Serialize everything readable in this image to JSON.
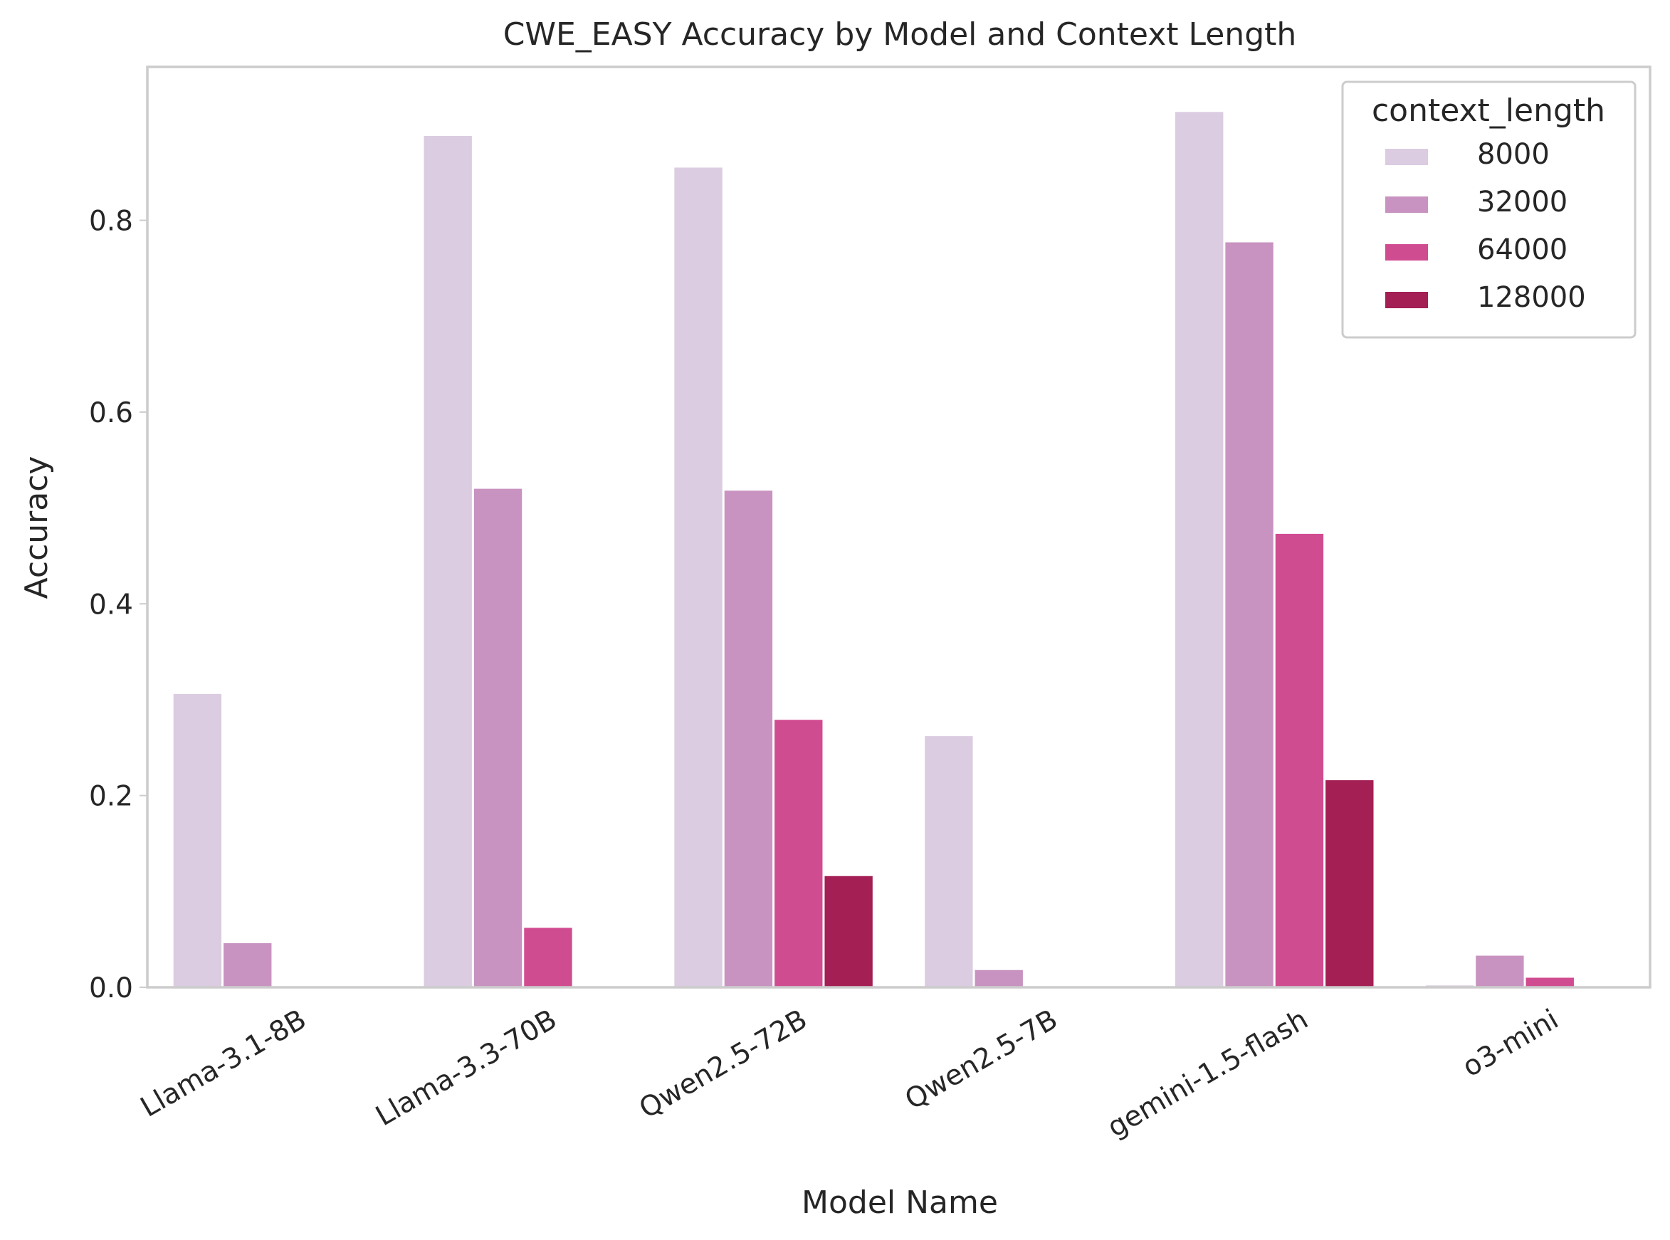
{
  "chart_data": {
    "type": "bar",
    "title": "CWE_EASY Accuracy by Model and Context Length",
    "xlabel": "Model Name",
    "ylabel": "Accuracy",
    "ylim": [
      0,
      0.96
    ],
    "yticks": [
      0.0,
      0.2,
      0.4,
      0.6,
      0.8
    ],
    "ytick_labels": [
      "0.0",
      "0.2",
      "0.4",
      "0.6",
      "0.8"
    ],
    "grid": false,
    "categories": [
      "Llama-3.1-8B",
      "Llama-3.3-70B",
      "Qwen2.5-72B",
      "Qwen2.5-7B",
      "gemini-1.5-flash",
      "o3-mini"
    ],
    "legend": {
      "title": "context_length",
      "position": "top-right"
    },
    "series": [
      {
        "name": "8000",
        "color": "#dbcce1",
        "values": [
          0.306,
          0.888,
          0.855,
          0.262,
          0.913,
          0.002
        ]
      },
      {
        "name": "32000",
        "color": "#c893c0",
        "values": [
          0.046,
          0.52,
          0.518,
          0.018,
          0.777,
          0.033
        ]
      },
      {
        "name": "64000",
        "color": "#d04c90",
        "values": [
          0.0,
          0.062,
          0.279,
          0.0,
          0.473,
          0.01
        ]
      },
      {
        "name": "128000",
        "color": "#a31f54",
        "values": [
          0.0,
          0.0,
          0.116,
          0.0,
          0.216,
          0.0
        ]
      }
    ]
  }
}
